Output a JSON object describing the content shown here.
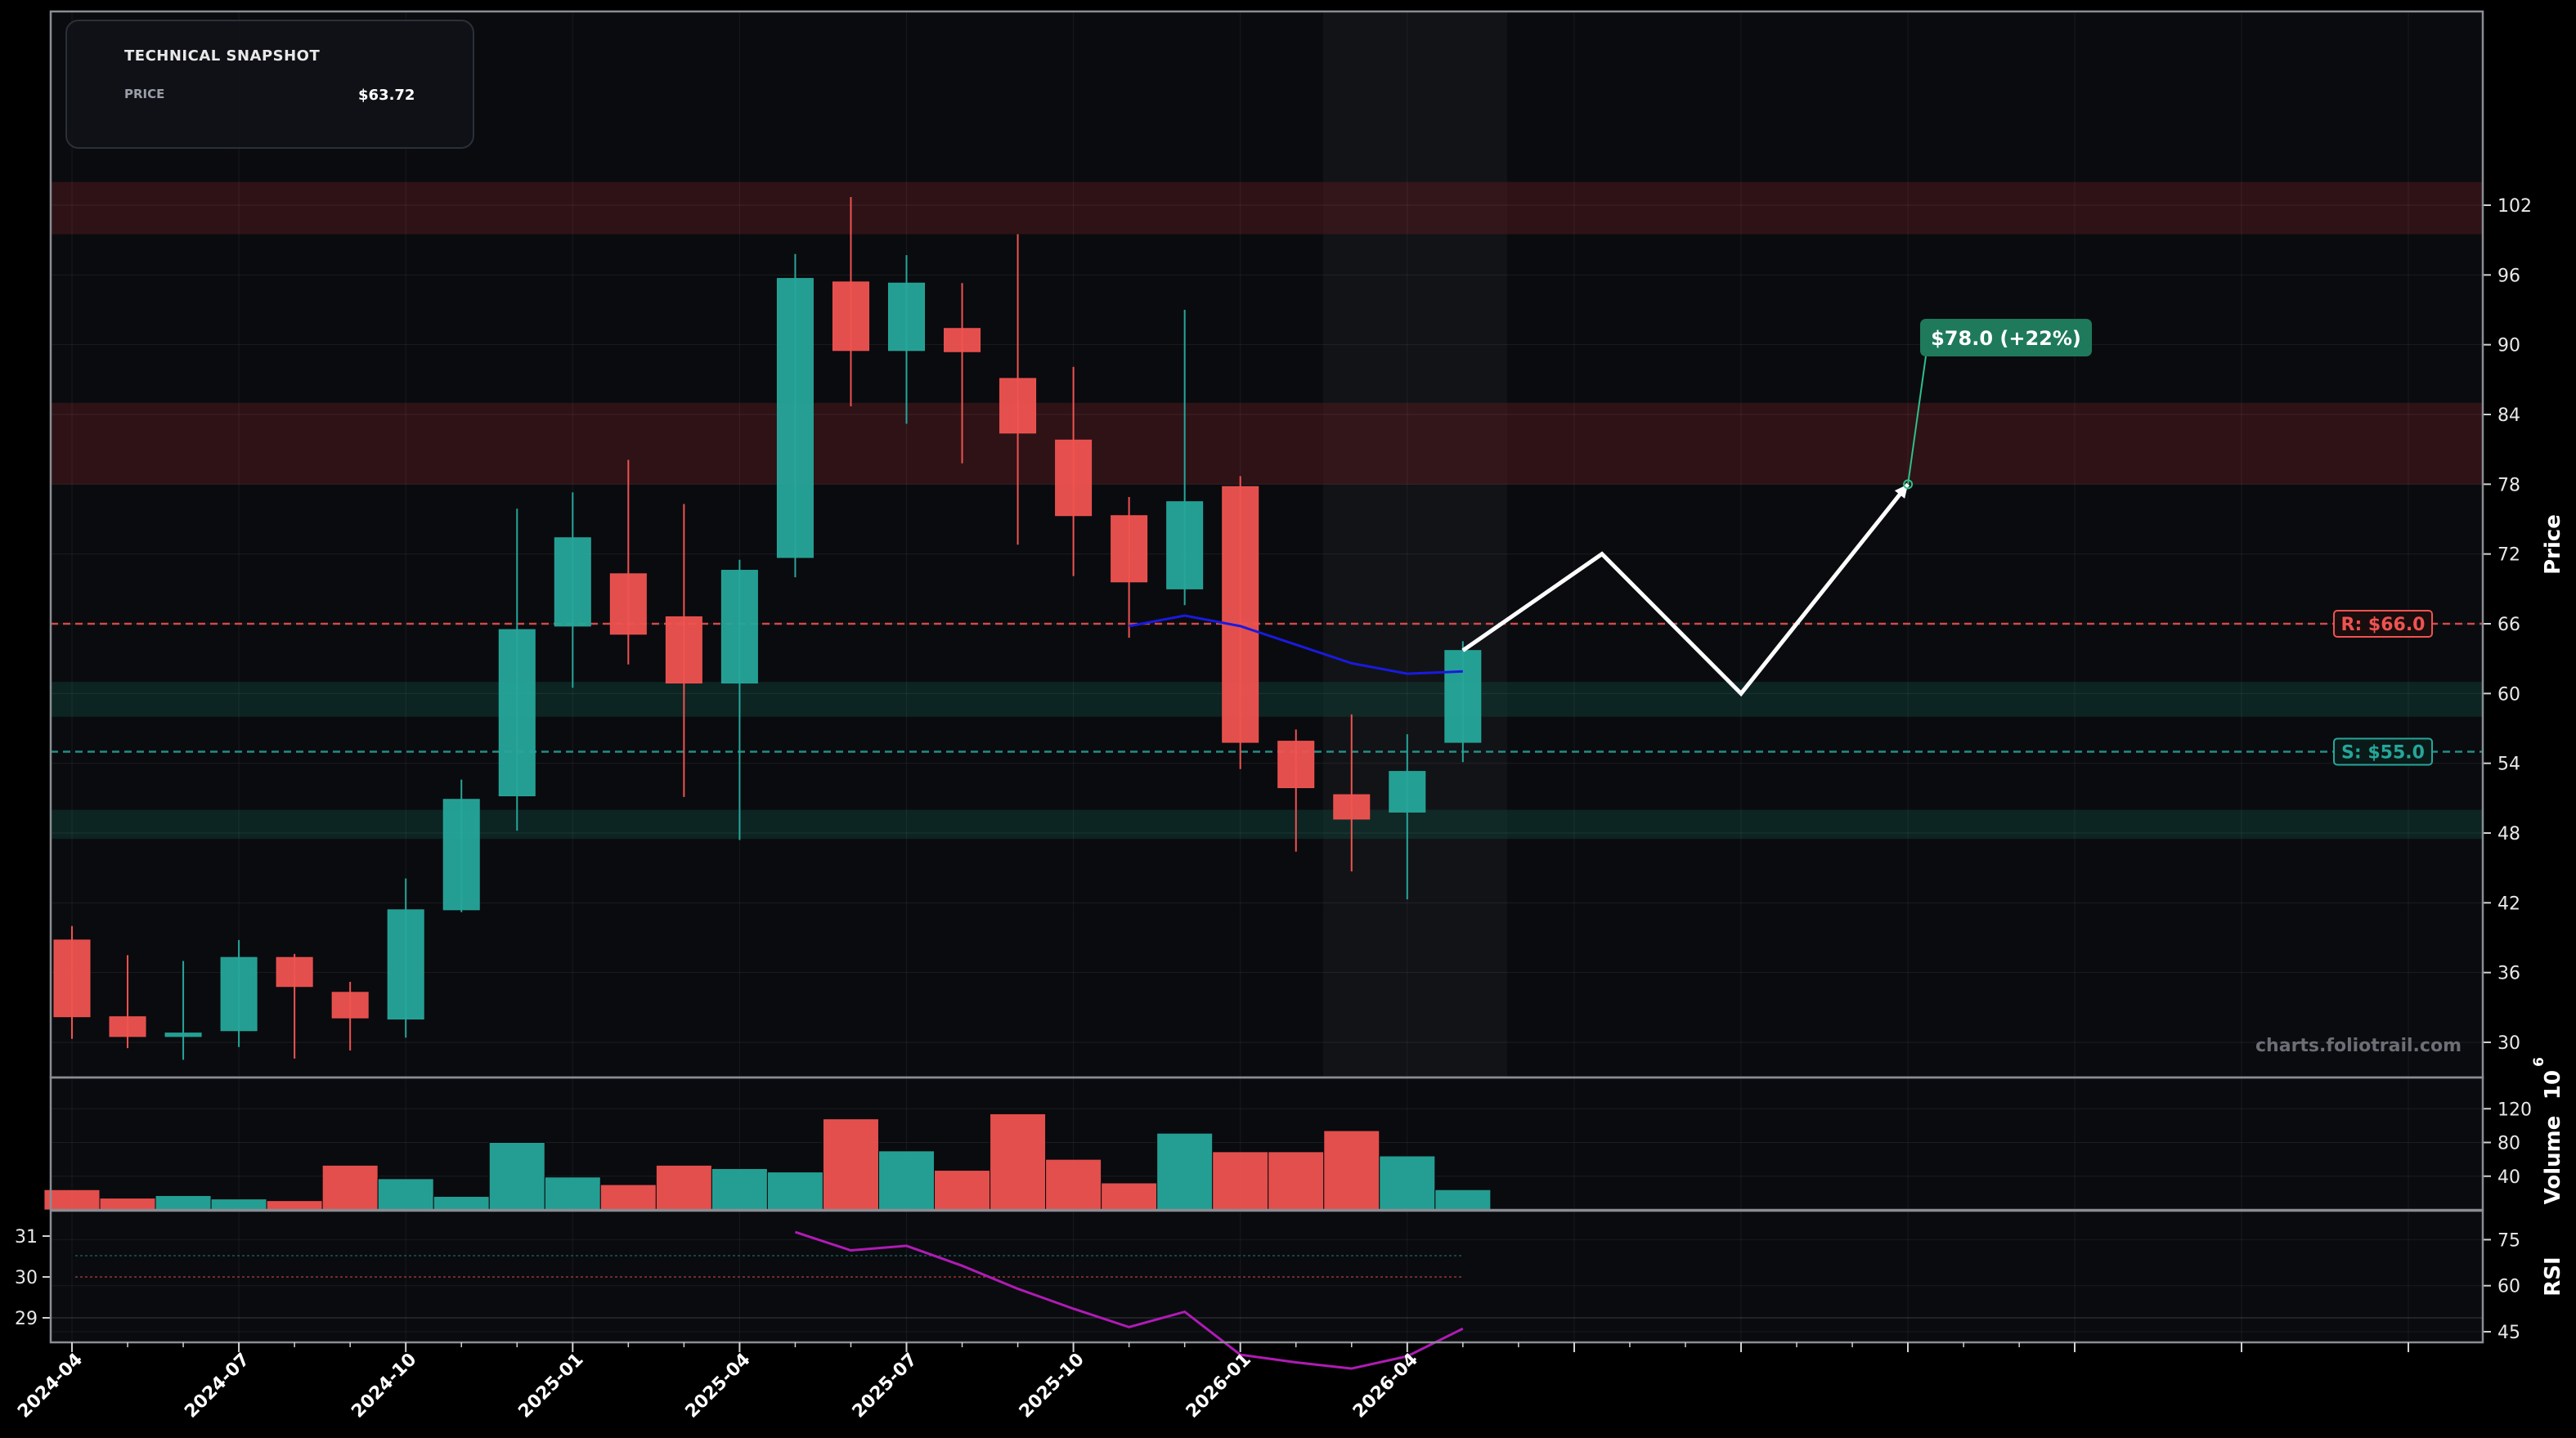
{
  "snapshot": {
    "title": "TECHNICAL SNAPSHOT",
    "price_label": "PRICE",
    "price_value": "$63.72"
  },
  "watermark": "charts.foliotrail.com",
  "colors": {
    "up": "#26a69a",
    "down": "#ef5350",
    "background": "#0a0b0f",
    "ma": "#1a1adf",
    "rsi": "#b01bb5",
    "projection": "#ffffff",
    "target": "#1e7a5a",
    "resistance": "#ef5350",
    "support": "#26a69a"
  },
  "chart_data": [
    {
      "type": "candlestick",
      "ylabel": "Price",
      "ylim": [
        28,
        104
      ],
      "y_ticks": [
        30,
        36,
        42,
        48,
        54,
        60,
        66,
        72,
        78,
        84,
        90,
        96,
        102
      ],
      "x_ticks": [
        "2024-04",
        "2024-07",
        "2024-10",
        "2025-01",
        "2025-04",
        "2025-07",
        "2025-10",
        "2026-01",
        "2026-04"
      ],
      "x_tick_index": [
        0,
        3,
        6,
        9,
        12,
        15,
        18,
        21,
        24
      ],
      "candles": [
        {
          "o": 38.8,
          "h": 40.0,
          "l": 30.3,
          "c": 32.2
        },
        {
          "o": 32.2,
          "h": 37.5,
          "l": 29.5,
          "c": 30.5
        },
        {
          "o": 30.5,
          "h": 37.0,
          "l": 28.5,
          "c": 30.8
        },
        {
          "o": 31.0,
          "h": 38.8,
          "l": 29.6,
          "c": 37.3
        },
        {
          "o": 37.3,
          "h": 37.6,
          "l": 28.6,
          "c": 34.8
        },
        {
          "o": 34.3,
          "h": 35.2,
          "l": 29.3,
          "c": 32.1
        },
        {
          "o": 32.0,
          "h": 44.1,
          "l": 30.4,
          "c": 41.4
        },
        {
          "o": 41.4,
          "h": 52.6,
          "l": 41.2,
          "c": 50.9
        },
        {
          "o": 51.2,
          "h": 75.9,
          "l": 48.2,
          "c": 65.5
        },
        {
          "o": 65.8,
          "h": 77.3,
          "l": 60.5,
          "c": 73.4
        },
        {
          "o": 70.3,
          "h": 80.1,
          "l": 62.5,
          "c": 65.1
        },
        {
          "o": 66.6,
          "h": 76.3,
          "l": 51.1,
          "c": 60.9
        },
        {
          "o": 60.9,
          "h": 71.5,
          "l": 47.4,
          "c": 70.6
        },
        {
          "o": 71.7,
          "h": 97.8,
          "l": 70.0,
          "c": 95.7
        },
        {
          "o": 95.4,
          "h": 102.7,
          "l": 84.7,
          "c": 89.5
        },
        {
          "o": 89.5,
          "h": 97.7,
          "l": 83.2,
          "c": 95.3
        },
        {
          "o": 91.4,
          "h": 95.3,
          "l": 79.8,
          "c": 89.4
        },
        {
          "o": 87.1,
          "h": 99.5,
          "l": 72.8,
          "c": 82.4
        },
        {
          "o": 81.8,
          "h": 88.1,
          "l": 70.1,
          "c": 75.3
        },
        {
          "o": 75.3,
          "h": 76.9,
          "l": 64.8,
          "c": 69.6
        },
        {
          "o": 69.0,
          "h": 93.0,
          "l": 67.6,
          "c": 76.5
        },
        {
          "o": 77.8,
          "h": 78.7,
          "l": 53.5,
          "c": 55.8
        },
        {
          "o": 55.9,
          "h": 56.9,
          "l": 46.4,
          "c": 51.9
        },
        {
          "o": 51.3,
          "h": 58.2,
          "l": 44.7,
          "c": 49.2
        },
        {
          "o": 49.8,
          "h": 56.5,
          "l": 42.3,
          "c": 53.3
        },
        {
          "o": 55.8,
          "h": 64.5,
          "l": 54.1,
          "c": 63.7
        }
      ],
      "moving_average": {
        "start_index": 19,
        "values": [
          65.8,
          66.7,
          65.8,
          64.2,
          62.6,
          61.7,
          61.9
        ]
      },
      "resistance": {
        "value": 66.0,
        "label": "R: $66.0"
      },
      "support": {
        "value": 55.0,
        "label": "S: $55.0"
      },
      "zones": [
        {
          "kind": "resistance",
          "from": 99.5,
          "to": 104.0
        },
        {
          "kind": "resistance",
          "from": 78.0,
          "to": 85.0
        },
        {
          "kind": "support",
          "from": 58.0,
          "to": 61.0
        },
        {
          "kind": "support",
          "from": 47.5,
          "to": 50.0
        }
      ],
      "projection": {
        "points": [
          {
            "i": 25,
            "y": 63.7
          },
          {
            "i": 27.5,
            "y": 72.0
          },
          {
            "i": 30,
            "y": 60.0
          },
          {
            "i": 33,
            "y": 78.0
          }
        ],
        "target_label": "$78.0 (+22%)"
      }
    },
    {
      "type": "bar",
      "ylabel": "Volume",
      "unit_label": "10",
      "unit_exponent": "6",
      "ylim": [
        0,
        128
      ],
      "y_ticks": [
        40,
        80,
        120
      ],
      "values": [
        24,
        14,
        17,
        13,
        11,
        53,
        37,
        16,
        80,
        39,
        30,
        53,
        49,
        45,
        108,
        70,
        47,
        114,
        60,
        32,
        91,
        69,
        69,
        94,
        64,
        24
      ]
    },
    {
      "type": "line",
      "ylabel": "RSI",
      "ylim": [
        43,
        80
      ],
      "y_ticks": [
        45,
        60,
        75
      ],
      "left_ticks": [
        29,
        30,
        31
      ],
      "start_index": 13,
      "values": [
        77.5,
        71.5,
        73.0,
        66.5,
        59.0,
        52.5,
        46.5,
        51.5,
        37.5,
        35.0,
        33.0,
        37.0,
        46.0
      ]
    }
  ]
}
